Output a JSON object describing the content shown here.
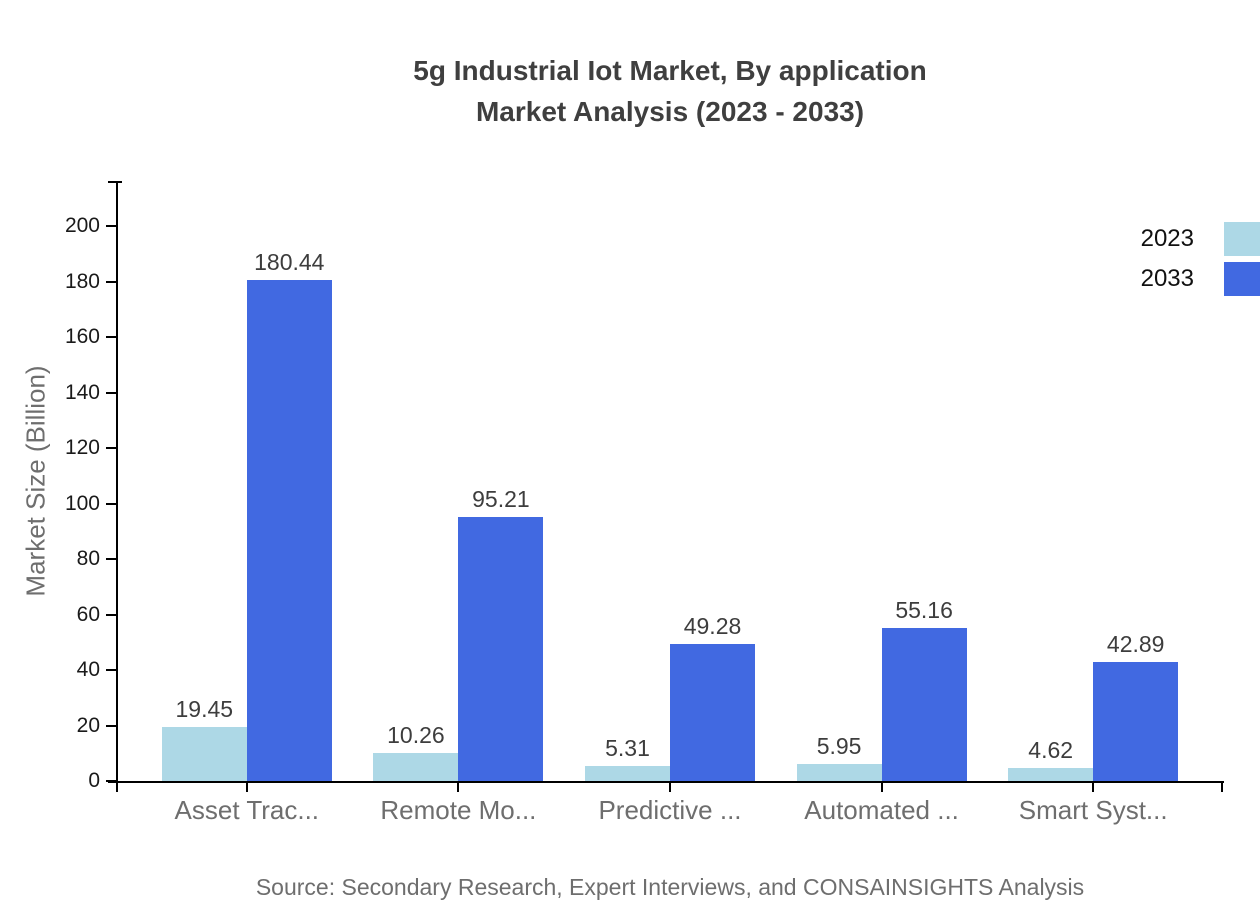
{
  "title": {
    "line1": "5g Industrial Iot Market, By application",
    "line2": "Market Analysis (2023 - 2033)"
  },
  "footer": {
    "source": "Source: Secondary Research, Expert Interviews, and CONSAINSIGHTS Analysis"
  },
  "colors": {
    "series_2023": "#ADD8E6",
    "series_2033": "#4169E1",
    "axis": "#000000",
    "title_text": "#3f3f3f",
    "value_label_text": "#3d3d3d",
    "muted_text": "#6e6e6e",
    "legend_text": "#111111",
    "background": "#ffffff"
  },
  "chart_data": {
    "type": "bar",
    "title": "5g Industrial Iot Market, By application Market Analysis (2023 - 2033)",
    "categories": [
      "Asset Trac...",
      "Remote Mo...",
      "Predictive ...",
      "Automated ...",
      "Smart Syst..."
    ],
    "series": [
      {
        "name": "2023",
        "color": "#ADD8E6",
        "values": [
          19.45,
          10.26,
          5.31,
          5.95,
          4.62
        ]
      },
      {
        "name": "2033",
        "color": "#4169E1",
        "values": [
          180.44,
          95.21,
          49.28,
          55.16,
          42.89
        ]
      }
    ],
    "xlabel": "",
    "ylabel": "Market Size (Billion)",
    "ylim": [
      0,
      215
    ],
    "yticks": [
      0,
      20,
      40,
      60,
      80,
      100,
      120,
      140,
      160,
      180,
      200
    ],
    "grid": false,
    "legend_position": "top-right",
    "value_labels": true,
    "value_label_format": "2-decimals"
  }
}
